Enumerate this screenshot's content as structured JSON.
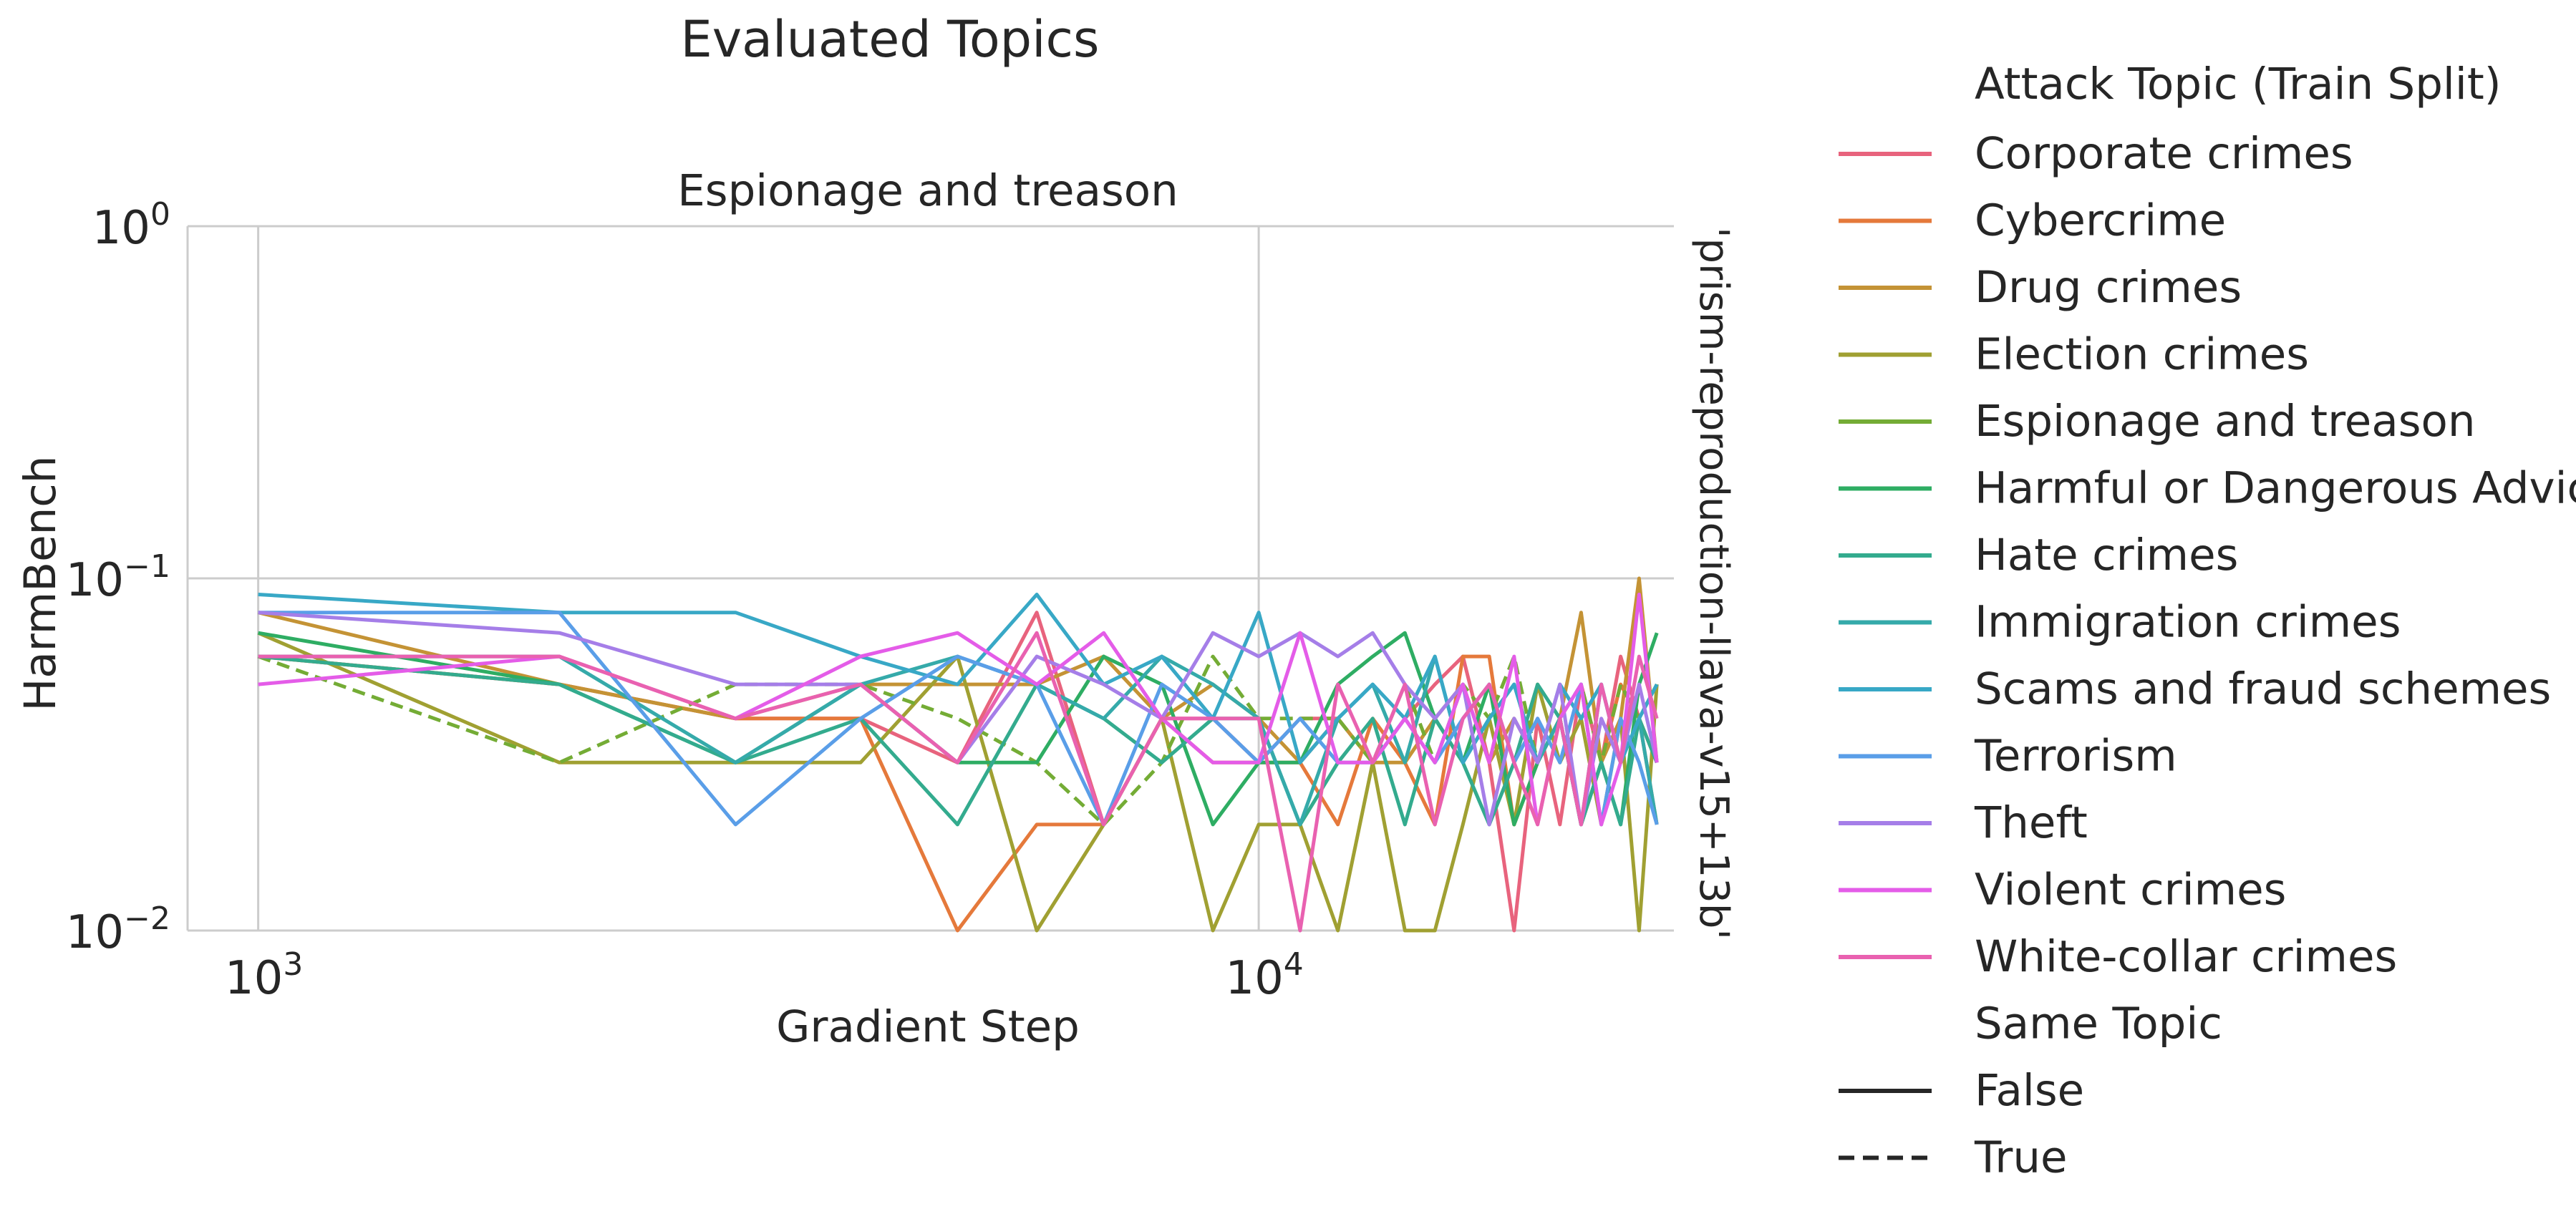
{
  "chart_data": {
    "type": "line",
    "suptitle": "Evaluated Topics",
    "title": "Espionage and treason",
    "xlabel": "Gradient Step",
    "ylabel": "HarmBench",
    "row_label": "'prism-reproduction-llava-v15+13b'",
    "x_scale": "log",
    "y_scale": "log",
    "xlim": [
      850,
      26000
    ],
    "ylim": [
      0.01,
      1.0
    ],
    "x_ticks": [
      {
        "value": 1000,
        "base": "10",
        "exp": "3"
      },
      {
        "value": 10000,
        "base": "10",
        "exp": "4"
      }
    ],
    "y_ticks": [
      {
        "value": 1.0,
        "base": "10",
        "exp": "0"
      },
      {
        "value": 0.1,
        "base": "10",
        "exp": "−1"
      },
      {
        "value": 0.01,
        "base": "10",
        "exp": "−2"
      }
    ],
    "grid": true,
    "legend_position": "right, outside",
    "legend": {
      "hue_title": "Attack Topic (Train Split)",
      "style_title": "Same Topic",
      "style_entries": [
        {
          "label": "False",
          "dash": "solid"
        },
        {
          "label": "True",
          "dash": "dashed"
        }
      ]
    },
    "x": [
      1000,
      2000,
      3000,
      4000,
      5000,
      6000,
      7000,
      8000,
      9000,
      10000,
      11000,
      12000,
      13000,
      14000,
      15000,
      16000,
      17000,
      18000,
      19000,
      20000,
      21000,
      22000,
      23000,
      24000,
      25000
    ],
    "series": [
      {
        "name": "Corporate crimes",
        "color": "#e8637d",
        "dash": "solid",
        "values": [
          0.06,
          0.05,
          0.04,
          0.04,
          0.03,
          0.08,
          0.02,
          0.04,
          0.04,
          0.03,
          0.04,
          0.04,
          0.03,
          0.04,
          0.05,
          0.06,
          0.03,
          0.01,
          0.04,
          0.02,
          0.05,
          0.03,
          0.06,
          0.04,
          0.03
        ]
      },
      {
        "name": "Cybercrime",
        "color": "#e5793b",
        "dash": "solid",
        "values": [
          0.06,
          0.05,
          0.04,
          0.04,
          0.01,
          0.02,
          0.02,
          0.04,
          0.03,
          0.03,
          0.03,
          0.02,
          0.04,
          0.03,
          0.02,
          0.06,
          0.06,
          0.02,
          0.03,
          0.04,
          0.02,
          0.03,
          0.05,
          0.04,
          0.02
        ]
      },
      {
        "name": "Drug crimes",
        "color": "#c49335",
        "dash": "solid",
        "values": [
          0.08,
          0.05,
          0.04,
          0.05,
          0.05,
          0.05,
          0.06,
          0.04,
          0.05,
          0.04,
          0.03,
          0.04,
          0.03,
          0.03,
          0.04,
          0.05,
          0.03,
          0.04,
          0.03,
          0.04,
          0.08,
          0.03,
          0.04,
          0.1,
          0.03
        ]
      },
      {
        "name": "Election crimes",
        "color": "#a0a032",
        "dash": "solid",
        "values": [
          0.07,
          0.03,
          0.03,
          0.03,
          0.06,
          0.01,
          0.02,
          0.04,
          0.01,
          0.02,
          0.02,
          0.01,
          0.03,
          0.01,
          0.01,
          0.02,
          0.04,
          0.02,
          0.05,
          0.03,
          0.04,
          0.02,
          0.04,
          0.01,
          0.05
        ]
      },
      {
        "name": "Espionage and treason",
        "color": "#74ac35",
        "dash": "dashed",
        "values": [
          0.06,
          0.03,
          0.05,
          0.05,
          0.04,
          0.03,
          0.02,
          0.03,
          0.06,
          0.04,
          0.04,
          0.04,
          0.03,
          0.05,
          0.03,
          0.05,
          0.04,
          0.06,
          0.03,
          0.04,
          0.05,
          0.03,
          0.05,
          0.04,
          0.05
        ]
      },
      {
        "name": "Harmful or Dangerous Advice",
        "color": "#2ead63",
        "dash": "solid",
        "values": [
          0.07,
          0.05,
          0.03,
          0.05,
          0.03,
          0.03,
          0.06,
          0.05,
          0.02,
          0.03,
          0.03,
          0.05,
          0.06,
          0.07,
          0.04,
          0.03,
          0.05,
          0.02,
          0.03,
          0.04,
          0.02,
          0.03,
          0.02,
          0.05,
          0.07
        ]
      },
      {
        "name": "Hate crimes",
        "color": "#33ab8e",
        "dash": "solid",
        "values": [
          0.06,
          0.05,
          0.03,
          0.04,
          0.02,
          0.05,
          0.04,
          0.03,
          0.04,
          0.04,
          0.02,
          0.03,
          0.04,
          0.02,
          0.04,
          0.03,
          0.02,
          0.03,
          0.05,
          0.04,
          0.02,
          0.03,
          0.02,
          0.04,
          0.03
        ]
      },
      {
        "name": "Immigration crimes",
        "color": "#35aaaa",
        "dash": "solid",
        "values": [
          0.06,
          0.06,
          0.03,
          0.05,
          0.06,
          0.05,
          0.04,
          0.06,
          0.05,
          0.04,
          0.02,
          0.04,
          0.05,
          0.03,
          0.06,
          0.03,
          0.04,
          0.05,
          0.03,
          0.04,
          0.02,
          0.05,
          0.03,
          0.04,
          0.02
        ]
      },
      {
        "name": "Scams and fraud schemes",
        "color": "#38a8c6",
        "dash": "solid",
        "values": [
          0.09,
          0.08,
          0.08,
          0.06,
          0.05,
          0.09,
          0.05,
          0.06,
          0.04,
          0.08,
          0.03,
          0.04,
          0.05,
          0.04,
          0.06,
          0.03,
          0.04,
          0.05,
          0.03,
          0.05,
          0.04,
          0.05,
          0.03,
          0.04,
          0.05
        ]
      },
      {
        "name": "Terrorism",
        "color": "#5a9ee8",
        "dash": "solid",
        "values": [
          0.08,
          0.08,
          0.02,
          0.04,
          0.06,
          0.05,
          0.02,
          0.05,
          0.04,
          0.03,
          0.04,
          0.03,
          0.03,
          0.04,
          0.03,
          0.04,
          0.05,
          0.03,
          0.04,
          0.03,
          0.05,
          0.02,
          0.04,
          0.03,
          0.02
        ]
      },
      {
        "name": "Theft",
        "color": "#a57ee8",
        "dash": "solid",
        "values": [
          0.08,
          0.07,
          0.05,
          0.05,
          0.03,
          0.06,
          0.05,
          0.04,
          0.07,
          0.06,
          0.07,
          0.06,
          0.07,
          0.05,
          0.04,
          0.05,
          0.02,
          0.04,
          0.03,
          0.05,
          0.02,
          0.04,
          0.03,
          0.05,
          0.03
        ]
      },
      {
        "name": "Violent crimes",
        "color": "#e45ce8",
        "dash": "solid",
        "values": [
          0.05,
          0.06,
          0.04,
          0.06,
          0.07,
          0.05,
          0.07,
          0.04,
          0.03,
          0.03,
          0.07,
          0.03,
          0.03,
          0.04,
          0.03,
          0.05,
          0.03,
          0.06,
          0.02,
          0.04,
          0.05,
          0.02,
          0.03,
          0.09,
          0.03
        ]
      },
      {
        "name": "White-collar crimes",
        "color": "#e961b0",
        "dash": "solid",
        "values": [
          0.06,
          0.06,
          0.04,
          0.05,
          0.03,
          0.07,
          0.02,
          0.04,
          0.04,
          0.04,
          0.01,
          0.05,
          0.03,
          0.05,
          0.02,
          0.04,
          0.05,
          0.03,
          0.02,
          0.04,
          0.02,
          0.05,
          0.03,
          0.06,
          0.04
        ]
      }
    ]
  }
}
